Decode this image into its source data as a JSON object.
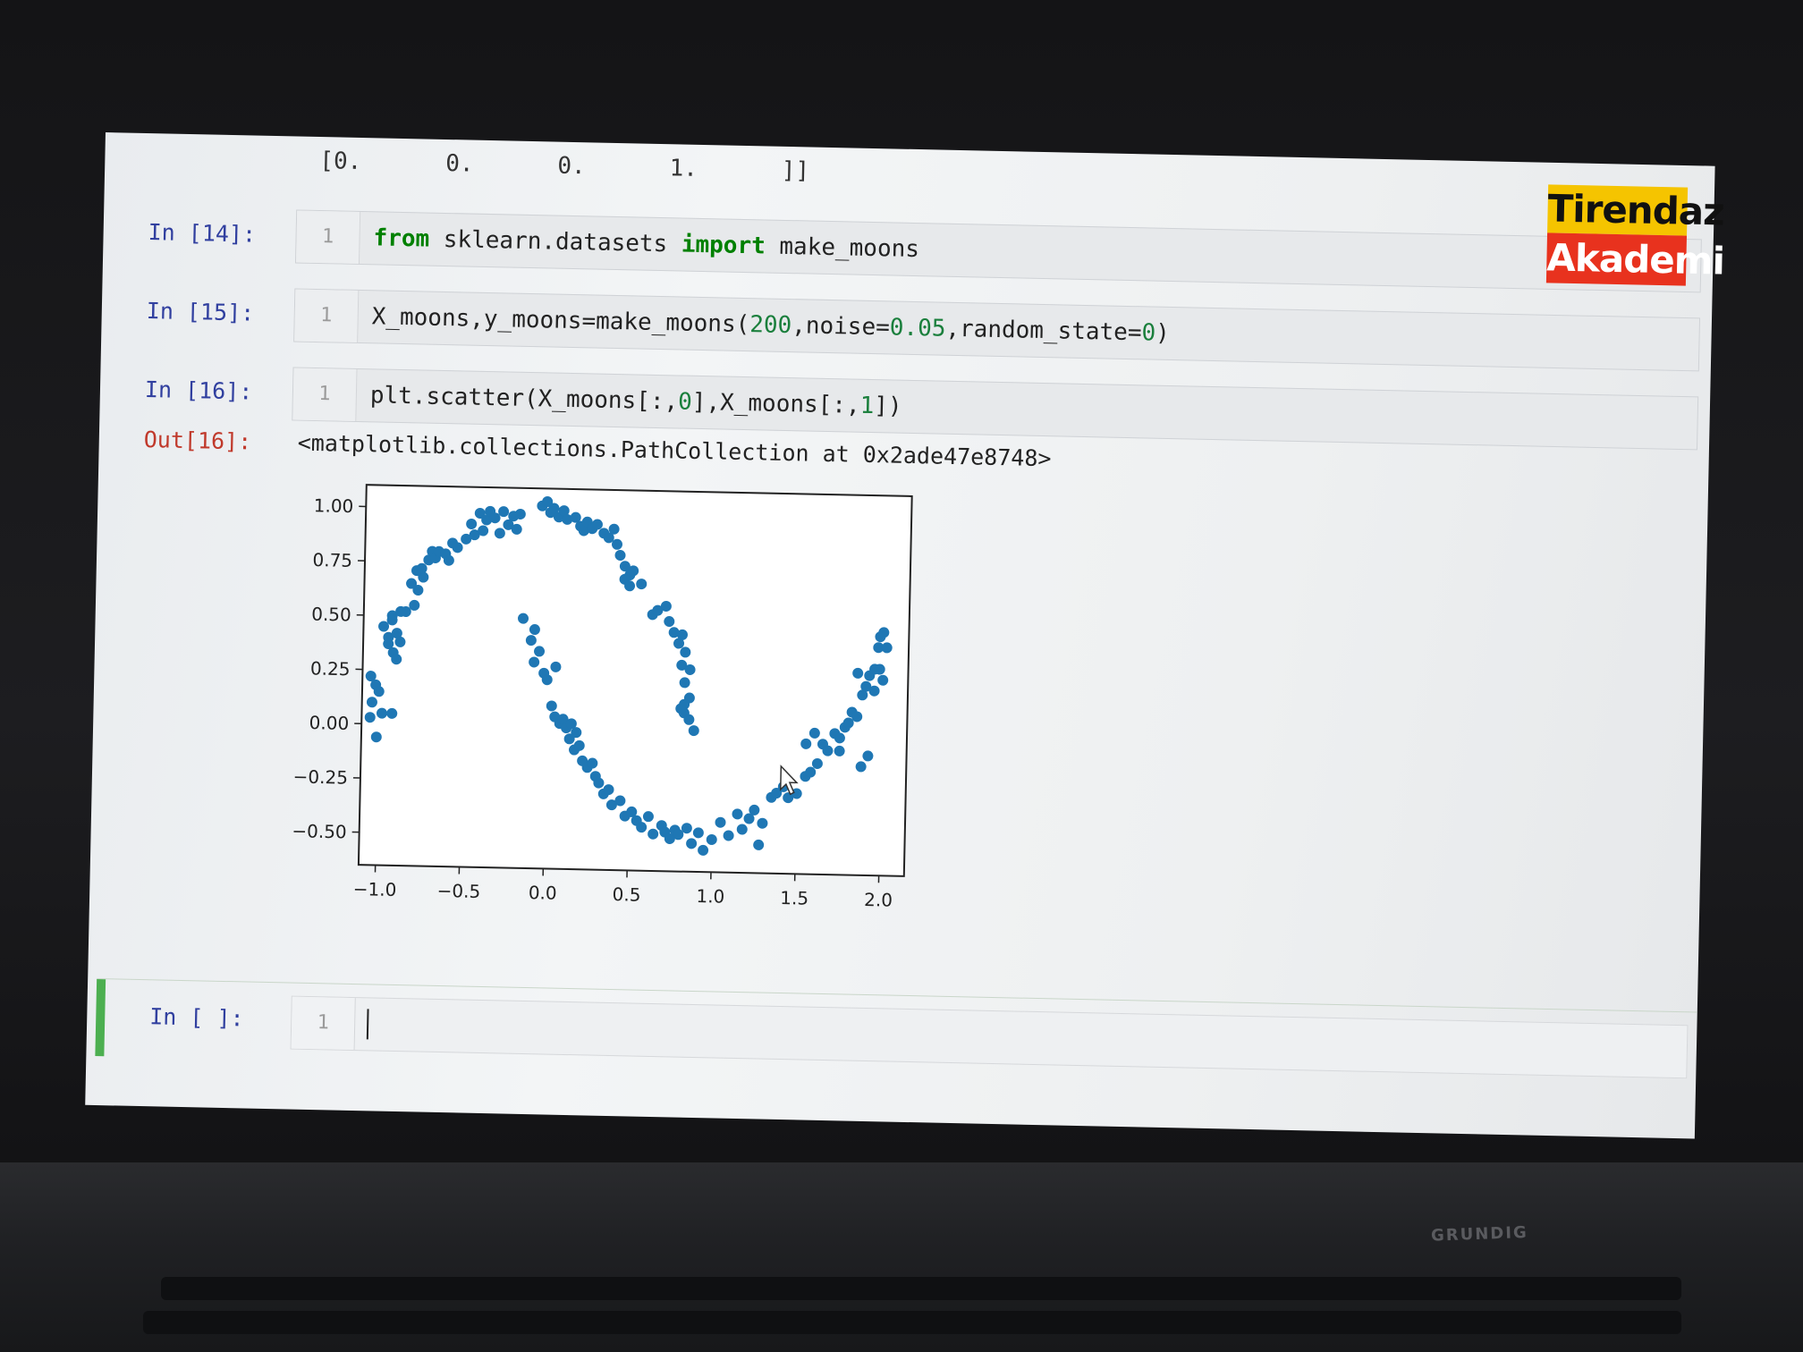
{
  "notebook": {
    "prev_output_fragment": "[0.      0.      0.      1.      ]]",
    "cells": [
      {
        "prompt": "In [14]:",
        "line_no": "1",
        "code_tokens": [
          {
            "t": "from",
            "c": "kw"
          },
          {
            "t": " sklearn.datasets ",
            "c": ""
          },
          {
            "t": "import",
            "c": "kw"
          },
          {
            "t": " make_moons",
            "c": ""
          }
        ]
      },
      {
        "prompt": "In [15]:",
        "line_no": "1",
        "code_tokens": [
          {
            "t": "X_moons,y_moons=make_moons(",
            "c": ""
          },
          {
            "t": "200",
            "c": "num"
          },
          {
            "t": ",noise=",
            "c": ""
          },
          {
            "t": "0.05",
            "c": "num"
          },
          {
            "t": ",random_state=",
            "c": ""
          },
          {
            "t": "0",
            "c": "num"
          },
          {
            "t": ")",
            "c": ""
          }
        ]
      },
      {
        "prompt": "In [16]:",
        "line_no": "1",
        "code_tokens": [
          {
            "t": "plt.scatter(X_moons[:,",
            "c": ""
          },
          {
            "t": "0",
            "c": "num"
          },
          {
            "t": "],X_moons[:,",
            "c": ""
          },
          {
            "t": "1",
            "c": "num"
          },
          {
            "t": "])",
            "c": ""
          }
        ]
      }
    ],
    "output": {
      "prompt": "Out[16]:",
      "text": "<matplotlib.collections.PathCollection at 0x2ade47e8748>"
    },
    "active_cell": {
      "prompt": "In [ ]:",
      "line_no": "1"
    }
  },
  "logo": {
    "line1": "Tirendaz",
    "line2": "Akademi"
  },
  "laptop_brand": "GRUNDIG",
  "chart_data": {
    "type": "scatter",
    "title": "",
    "xlabel": "",
    "ylabel": "",
    "xlim": [
      -1.1,
      2.15
    ],
    "ylim": [
      -0.65,
      1.1
    ],
    "x_ticks": [
      "−1.0",
      "−0.5",
      "0.0",
      "0.5",
      "1.0",
      "1.5",
      "2.0"
    ],
    "x_tick_values": [
      -1.0,
      -0.5,
      0.0,
      0.5,
      1.0,
      1.5,
      2.0
    ],
    "y_ticks": [
      "1.00",
      "0.75",
      "0.50",
      "0.25",
      "0.00",
      "−0.25",
      "−0.50"
    ],
    "y_tick_values": [
      1.0,
      0.75,
      0.5,
      0.25,
      0.0,
      -0.25,
      -0.5
    ],
    "grid": false,
    "color": "#1f77b4",
    "series": [
      {
        "points": [
          [
            -1.05,
            0.22
          ],
          [
            -1.02,
            0.18
          ],
          [
            -1.04,
            0.1
          ],
          [
            -1.0,
            0.15
          ],
          [
            -0.98,
            0.05
          ],
          [
            -1.05,
            0.03
          ],
          [
            -1.01,
            -0.06
          ],
          [
            -0.92,
            0.05
          ],
          [
            -0.95,
            0.4
          ],
          [
            -0.98,
            0.45
          ],
          [
            -0.93,
            0.48
          ],
          [
            -0.9,
            0.42
          ],
          [
            -0.95,
            0.37
          ],
          [
            -0.92,
            0.33
          ],
          [
            -0.88,
            0.38
          ],
          [
            -0.9,
            0.3
          ],
          [
            -0.93,
            0.5
          ],
          [
            -0.85,
            0.52
          ],
          [
            -0.88,
            0.52
          ],
          [
            -0.8,
            0.55
          ],
          [
            -0.78,
            0.62
          ],
          [
            -0.82,
            0.65
          ],
          [
            -0.75,
            0.68
          ],
          [
            -0.79,
            0.71
          ],
          [
            -0.76,
            0.72
          ],
          [
            -0.72,
            0.76
          ],
          [
            -0.7,
            0.8
          ],
          [
            -0.68,
            0.77
          ],
          [
            -0.66,
            0.8
          ],
          [
            -0.62,
            0.79
          ],
          [
            -0.6,
            0.76
          ],
          [
            -0.58,
            0.84
          ],
          [
            -0.55,
            0.82
          ],
          [
            -0.5,
            0.86
          ],
          [
            -0.47,
            0.93
          ],
          [
            -0.45,
            0.88
          ],
          [
            -0.42,
            0.98
          ],
          [
            -0.4,
            0.9
          ],
          [
            -0.38,
            0.95
          ],
          [
            -0.36,
            0.99
          ],
          [
            -0.33,
            0.96
          ],
          [
            -0.3,
            0.89
          ],
          [
            -0.28,
            0.99
          ],
          [
            -0.25,
            0.93
          ],
          [
            -0.22,
            0.97
          ],
          [
            -0.2,
            0.91
          ],
          [
            -0.18,
            0.98
          ],
          [
            -0.05,
            1.02
          ],
          [
            -0.02,
            1.04
          ],
          [
            0.0,
            0.99
          ],
          [
            0.02,
            1.01
          ],
          [
            0.05,
            0.97
          ],
          [
            0.08,
            1.0
          ],
          [
            0.1,
            0.96
          ],
          [
            0.15,
            0.97
          ],
          [
            0.18,
            0.93
          ],
          [
            0.2,
            0.91
          ],
          [
            0.22,
            0.95
          ],
          [
            0.25,
            0.92
          ],
          [
            0.28,
            0.94
          ],
          [
            0.32,
            0.9
          ],
          [
            0.35,
            0.88
          ],
          [
            0.38,
            0.92
          ],
          [
            0.4,
            0.85
          ],
          [
            0.42,
            0.8
          ],
          [
            0.45,
            0.75
          ],
          [
            0.48,
            0.71
          ],
          [
            0.45,
            0.69
          ],
          [
            0.5,
            0.73
          ],
          [
            0.48,
            0.66
          ],
          [
            0.55,
            0.67
          ],
          [
            0.62,
            0.53
          ],
          [
            0.65,
            0.55
          ],
          [
            0.7,
            0.57
          ],
          [
            0.72,
            0.5
          ],
          [
            0.75,
            0.45
          ],
          [
            0.78,
            0.4
          ],
          [
            0.8,
            0.44
          ],
          [
            0.82,
            0.36
          ],
          [
            0.8,
            0.3
          ],
          [
            0.85,
            0.28
          ],
          [
            0.82,
            0.22
          ],
          [
            0.85,
            0.15
          ],
          [
            0.82,
            0.08
          ],
          [
            0.8,
            0.1
          ],
          [
            0.85,
            0.05
          ],
          [
            0.88,
            0.0
          ],
          [
            0.82,
            0.12
          ],
          [
            -0.15,
            0.5
          ],
          [
            -0.08,
            0.45
          ],
          [
            -0.1,
            0.4
          ],
          [
            -0.05,
            0.35
          ],
          [
            -0.08,
            0.3
          ],
          [
            -0.02,
            0.25
          ],
          [
            0.05,
            0.28
          ],
          [
            0.0,
            0.22
          ],
          [
            0.03,
            0.1
          ],
          [
            0.05,
            0.05
          ],
          [
            0.08,
            0.02
          ],
          [
            0.1,
            0.04
          ],
          [
            0.12,
            0.0
          ],
          [
            0.15,
            0.02
          ],
          [
            0.18,
            -0.02
          ],
          [
            0.14,
            -0.05
          ],
          [
            0.17,
            -0.1
          ],
          [
            0.2,
            -0.08
          ],
          [
            0.22,
            -0.15
          ],
          [
            0.25,
            -0.18
          ],
          [
            0.28,
            -0.16
          ],
          [
            0.3,
            -0.22
          ],
          [
            0.32,
            -0.25
          ],
          [
            0.35,
            -0.3
          ],
          [
            0.38,
            -0.28
          ],
          [
            0.4,
            -0.35
          ],
          [
            0.45,
            -0.33
          ],
          [
            0.48,
            -0.4
          ],
          [
            0.52,
            -0.38
          ],
          [
            0.55,
            -0.42
          ],
          [
            0.58,
            -0.45
          ],
          [
            0.62,
            -0.4
          ],
          [
            0.65,
            -0.48
          ],
          [
            0.7,
            -0.44
          ],
          [
            0.72,
            -0.47
          ],
          [
            0.75,
            -0.5
          ],
          [
            0.78,
            -0.46
          ],
          [
            0.8,
            -0.48
          ],
          [
            0.85,
            -0.45
          ],
          [
            0.88,
            -0.52
          ],
          [
            0.92,
            -0.47
          ],
          [
            0.95,
            -0.55
          ],
          [
            1.0,
            -0.5
          ],
          [
            1.05,
            -0.42
          ],
          [
            1.1,
            -0.48
          ],
          [
            1.15,
            -0.38
          ],
          [
            1.18,
            -0.45
          ],
          [
            1.22,
            -0.4
          ],
          [
            1.25,
            -0.36
          ],
          [
            1.28,
            -0.52
          ],
          [
            1.3,
            -0.42
          ],
          [
            1.35,
            -0.3
          ],
          [
            1.38,
            -0.28
          ],
          [
            1.42,
            -0.25
          ],
          [
            1.45,
            -0.3
          ],
          [
            1.5,
            -0.28
          ],
          [
            1.55,
            -0.2
          ],
          [
            1.58,
            -0.18
          ],
          [
            1.62,
            -0.14
          ],
          [
            1.65,
            -0.05
          ],
          [
            1.68,
            -0.08
          ],
          [
            1.72,
            0.0
          ],
          [
            1.75,
            -0.02
          ],
          [
            1.78,
            0.03
          ],
          [
            1.8,
            0.05
          ],
          [
            1.82,
            0.1
          ],
          [
            1.85,
            0.08
          ],
          [
            1.88,
            0.18
          ],
          [
            1.9,
            0.22
          ],
          [
            1.92,
            0.27
          ],
          [
            1.95,
            0.3
          ],
          [
            1.97,
            0.4
          ],
          [
            1.98,
            0.45
          ],
          [
            2.0,
            0.47
          ],
          [
            2.02,
            0.4
          ],
          [
            1.98,
            0.3
          ],
          [
            2.0,
            0.25
          ],
          [
            1.95,
            0.2
          ],
          [
            1.85,
            0.28
          ],
          [
            1.6,
            0.0
          ],
          [
            1.55,
            -0.05
          ],
          [
            1.88,
            -0.15
          ],
          [
            1.92,
            -0.1
          ],
          [
            1.75,
            -0.08
          ]
        ]
      }
    ]
  }
}
